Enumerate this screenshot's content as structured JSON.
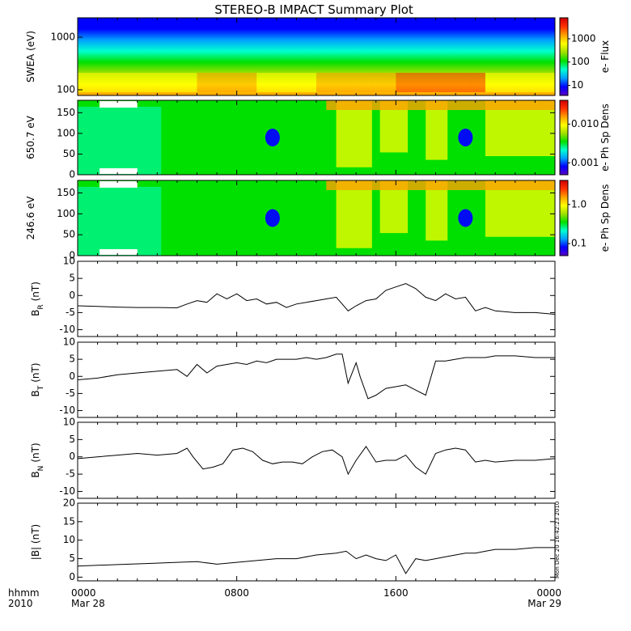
{
  "title": "STEREO-B IMPACT Summary Plot",
  "stamp": "Mon Dec 20 16:42:23 2010",
  "x_axis": {
    "row1_label": "hhmm",
    "row2_label": "2010",
    "ticks": [
      {
        "hhmm": "0000",
        "date": "Mar 28"
      },
      {
        "hhmm": "0800",
        "date": ""
      },
      {
        "hhmm": "1600",
        "date": ""
      },
      {
        "hhmm": "0000",
        "date": "Mar 29"
      }
    ]
  },
  "colors": {
    "spectrogram_scale": [
      "#5a00c8",
      "#0000ff",
      "#00a0ff",
      "#00ffd0",
      "#00e000",
      "#a0e000",
      "#ffff00",
      "#ffa000",
      "#ff3000",
      "#d00000"
    ],
    "line": "#000000",
    "frame": "#000000"
  },
  "chart_data": [
    {
      "type": "heatmap",
      "ylabel": "SWEA (eV)",
      "yscale": "log",
      "yticks": [
        "1000",
        "100"
      ],
      "colorbar_label": "e- Flux",
      "colorbar_ticks": [
        "1000",
        "100",
        "10"
      ],
      "x_hours": [
        0,
        4,
        6,
        9,
        10.5,
        12,
        14,
        15,
        16,
        18,
        19.5,
        20.5,
        22,
        24
      ],
      "intensity_low_energy": [
        0.72,
        0.74,
        0.82,
        0.8,
        0.68,
        0.85,
        0.86,
        0.84,
        0.9,
        0.92,
        0.88,
        0.74,
        0.8,
        0.78
      ]
    },
    {
      "type": "heatmap",
      "ylabel": "650.7 eV",
      "ylim": [
        0,
        180
      ],
      "yticks": [
        "150",
        "100",
        "50",
        "0"
      ],
      "colorbar_label": "e- Ph Sp Dens",
      "colorbar_ticks": [
        "0.010",
        "0.001"
      ]
    },
    {
      "type": "heatmap",
      "ylabel": "246.6 eV",
      "ylim": [
        0,
        180
      ],
      "yticks": [
        "150",
        "100",
        "50",
        "0"
      ],
      "colorbar_label": "e- Ph Sp Dens",
      "colorbar_ticks": [
        "1.0",
        "0.1"
      ]
    },
    {
      "type": "line",
      "ylabel": "B",
      "ylabel_sub": "R",
      "ylabel_unit": "(nT)",
      "ylim": [
        -12,
        10
      ],
      "yticks": [
        "10",
        "5",
        "0",
        "-5",
        "-10"
      ],
      "x": [
        0,
        1,
        2,
        3,
        4,
        5,
        5.5,
        6,
        6.5,
        7,
        7.5,
        8,
        8.5,
        9,
        9.5,
        10,
        10.5,
        11,
        11.5,
        12,
        12.5,
        13,
        13.3,
        13.6,
        14,
        14.5,
        15,
        15.5,
        16,
        16.5,
        17,
        17.5,
        18,
        18.5,
        19,
        19.5,
        20,
        20.5,
        21,
        22,
        23,
        24
      ],
      "y": [
        -3,
        -3.2,
        -3.4,
        -3.5,
        -3.5,
        -3.6,
        -2.5,
        -1.5,
        -2,
        0.5,
        -1,
        0.5,
        -1.5,
        -1,
        -2.5,
        -2,
        -3.5,
        -2.5,
        -2,
        -1.5,
        -1,
        -0.5,
        -2.5,
        -4.5,
        -3,
        -1.5,
        -1,
        1.5,
        2.5,
        3.5,
        2,
        -0.5,
        -1.5,
        0.5,
        -1,
        -0.5,
        -4.5,
        -3.5,
        -4.5,
        -5,
        -5,
        -5.5
      ]
    },
    {
      "type": "line",
      "ylabel": "B",
      "ylabel_sub": "T",
      "ylabel_unit": "(nT)",
      "ylim": [
        -12,
        10
      ],
      "yticks": [
        "10",
        "5",
        "0",
        "-5",
        "-10"
      ],
      "x": [
        0,
        1,
        2,
        3,
        4,
        5,
        5.5,
        6,
        6.5,
        7,
        7.5,
        8,
        8.5,
        9,
        9.5,
        10,
        10.5,
        11,
        11.5,
        12,
        12.5,
        13,
        13.3,
        13.6,
        14,
        14.2,
        14.6,
        15,
        15.5,
        16,
        16.5,
        17,
        17.5,
        18,
        18.5,
        19,
        19.5,
        20,
        20.5,
        21,
        22,
        23,
        24
      ],
      "y": [
        -1,
        -0.5,
        0.5,
        1,
        1.5,
        2,
        0,
        3.5,
        1,
        3,
        3.5,
        4,
        3.5,
        4.5,
        4,
        5,
        5,
        5,
        5.5,
        5,
        5.5,
        6.5,
        6.5,
        -2,
        4,
        0,
        -6.5,
        -5.5,
        -3.5,
        -3,
        -2.5,
        -4,
        -5.5,
        4.5,
        4.5,
        5,
        5.5,
        5.5,
        5.5,
        6,
        6,
        5.5,
        5.5
      ]
    },
    {
      "type": "line",
      "ylabel": "B",
      "ylabel_sub": "N",
      "ylabel_unit": "(nT)",
      "ylim": [
        -12,
        10
      ],
      "yticks": [
        "10",
        "5",
        "0",
        "-5",
        "-10"
      ],
      "x": [
        0,
        1,
        2,
        3,
        4,
        5,
        5.5,
        5.8,
        6.3,
        6.8,
        7.3,
        7.8,
        8.3,
        8.8,
        9.3,
        9.8,
        10.3,
        10.8,
        11.3,
        11.8,
        12.3,
        12.8,
        13.3,
        13.6,
        14,
        14.5,
        15,
        15.5,
        16,
        16.5,
        17,
        17.5,
        18,
        18.5,
        19,
        19.5,
        20,
        20.5,
        21,
        22,
        23,
        24
      ],
      "y": [
        -0.5,
        0,
        0.5,
        1,
        0.5,
        1,
        2.5,
        0,
        -3.5,
        -3,
        -2,
        2,
        2.5,
        1.5,
        -1,
        -2,
        -1.5,
        -1.5,
        -2,
        0,
        1.5,
        2,
        0,
        -5,
        -1,
        3,
        -1.5,
        -1,
        -1,
        0.5,
        -3,
        -5,
        1,
        2,
        2.5,
        2,
        -1.5,
        -1,
        -1.5,
        -1,
        -1,
        -0.5
      ]
    },
    {
      "type": "line",
      "ylabel": "|B| (nT)",
      "ylim": [
        -1,
        20
      ],
      "yticks": [
        "20",
        "15",
        "10",
        "5",
        "0"
      ],
      "x": [
        0,
        1,
        2,
        3,
        4,
        5,
        6,
        7,
        8,
        9,
        10,
        11,
        12,
        13,
        13.5,
        14,
        14.5,
        15,
        15.5,
        16,
        16.5,
        17,
        17.5,
        18,
        18.5,
        19,
        19.5,
        20,
        20.5,
        21,
        22,
        23,
        24
      ],
      "y": [
        3,
        3.2,
        3.4,
        3.6,
        3.8,
        4,
        4.2,
        3.5,
        4,
        4.5,
        5,
        5,
        6,
        6.5,
        7,
        5,
        6,
        5,
        4.5,
        6,
        1,
        5,
        4.5,
        5,
        5.5,
        6,
        6.5,
        6.5,
        7,
        7.5,
        7.5,
        8,
        8
      ]
    }
  ]
}
